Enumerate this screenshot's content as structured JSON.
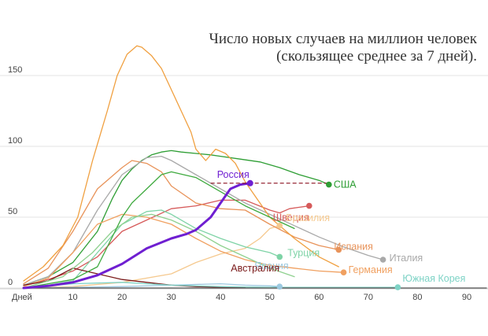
{
  "chart_data": {
    "type": "line",
    "title": [
      "Число новых случаев на миллион человек",
      "(скользящее среднее за 7 дней)."
    ],
    "xlabel": "Дней",
    "x_ticks": [
      10,
      20,
      30,
      40,
      50,
      60,
      70,
      80,
      90
    ],
    "y_ticks": [
      0,
      50,
      100,
      150
    ],
    "xlim": [
      0,
      94
    ],
    "ylim": [
      0,
      175
    ],
    "grid": "horizontal",
    "legend": "inline labels at line ends",
    "reference_line": {
      "x": [
        38,
        62
      ],
      "y": 74,
      "color": "#8b0f1f"
    },
    "series": [
      {
        "name": "Россия",
        "color": "#6f1fd1",
        "emphasis": true,
        "x": [
          0,
          5,
          10,
          15,
          20,
          25,
          30,
          33,
          35,
          38,
          40,
          42,
          44,
          46
        ],
        "y": [
          0,
          1.5,
          4,
          9,
          17,
          28,
          35,
          38,
          41,
          50,
          60,
          70,
          73,
          74
        ],
        "end_marker": true
      },
      {
        "name": "США",
        "color": "#2e9e34",
        "x": [
          0,
          5,
          10,
          15,
          18,
          20,
          22,
          24,
          26,
          28,
          30,
          32,
          35,
          38,
          40,
          44,
          48,
          52,
          56,
          60,
          62
        ],
        "y": [
          2,
          8,
          18,
          40,
          63,
          76,
          84,
          90,
          94,
          96,
          97,
          96,
          95,
          94,
          93,
          91,
          89,
          85,
          80,
          76,
          73
        ],
        "end_marker": true
      },
      {
        "name": "Швеция",
        "color": "#d65a5a",
        "x": [
          0,
          5,
          10,
          15,
          20,
          25,
          30,
          35,
          40,
          45,
          50,
          52,
          54,
          56,
          58
        ],
        "y": [
          2,
          6,
          12,
          22,
          40,
          48,
          56,
          58,
          62,
          62,
          55,
          53,
          56,
          57,
          58
        ],
        "end_marker": true
      },
      {
        "name": "Бразилия",
        "color": "#f5c98f",
        "x": [
          0,
          10,
          20,
          30,
          35,
          40,
          45,
          48,
          50,
          52
        ],
        "y": [
          0,
          1,
          4,
          10,
          18,
          24,
          28,
          35,
          42,
          44
        ],
        "end_marker": true
      },
      {
        "name": "Турция",
        "color": "#7ed3a6",
        "x": [
          0,
          5,
          10,
          15,
          20,
          25,
          28,
          30,
          35,
          40,
          45,
          50,
          52
        ],
        "y": [
          0,
          2,
          5,
          25,
          45,
          54,
          55,
          52,
          42,
          35,
          29,
          25,
          22
        ],
        "end_marker": true
      },
      {
        "name": "Испания",
        "color": "#e8935a",
        "x": [
          0,
          5,
          10,
          15,
          20,
          22,
          25,
          28,
          30,
          35,
          40,
          45,
          50,
          55,
          60,
          64
        ],
        "y": [
          3,
          14,
          40,
          70,
          85,
          90,
          88,
          82,
          72,
          60,
          56,
          55,
          45,
          36,
          30,
          27
        ],
        "end_marker": true
      },
      {
        "name": "Италия",
        "color": "#a9a9a9",
        "x": [
          0,
          5,
          10,
          15,
          20,
          25,
          28,
          30,
          35,
          40,
          45,
          50,
          55,
          60,
          65,
          70,
          73
        ],
        "y": [
          2,
          8,
          25,
          55,
          80,
          92,
          93,
          90,
          80,
          70,
          60,
          52,
          44,
          36,
          29,
          23,
          20
        ],
        "end_marker": true
      },
      {
        "name": "Германия",
        "color": "#f0a060",
        "x": [
          0,
          5,
          10,
          15,
          20,
          25,
          30,
          35,
          40,
          45,
          50,
          55,
          60,
          65
        ],
        "y": [
          1,
          7,
          25,
          45,
          52,
          50,
          45,
          35,
          26,
          20,
          16,
          14,
          12,
          11
        ],
        "end_marker": true
      },
      {
        "name": "Япония",
        "color": "#9cc9e0",
        "x": [
          0,
          10,
          20,
          30,
          40,
          45,
          50,
          52
        ],
        "y": [
          0,
          0.5,
          1,
          2,
          3,
          2,
          1.5,
          1
        ],
        "end_marker": true
      },
      {
        "name": "Австралия",
        "color": "#7a1a1a",
        "x": [
          0,
          5,
          10,
          15,
          20,
          25,
          30,
          35,
          40,
          45
        ],
        "y": [
          2,
          5,
          14,
          10,
          6,
          4,
          2,
          1,
          0.5,
          0.3
        ],
        "end_marker": false
      },
      {
        "name": "Южная Корея",
        "color": "#7ed3c6",
        "x": [
          0,
          10,
          20,
          30,
          40,
          50,
          60,
          70,
          76
        ],
        "y": [
          0,
          3,
          4,
          2,
          1,
          0.5,
          0.5,
          0.5,
          0.5
        ],
        "end_marker": true
      },
      {
        "name": "",
        "color": "#f0a040",
        "x": [
          0,
          4,
          8,
          11,
          14,
          17,
          19,
          21,
          23,
          24,
          26,
          28,
          30,
          32,
          34,
          35,
          37,
          39,
          41,
          43,
          45,
          47,
          50,
          55,
          60,
          64
        ],
        "y": [
          5,
          15,
          30,
          50,
          90,
          125,
          150,
          165,
          171,
          170,
          164,
          155,
          140,
          125,
          110,
          98,
          90,
          98,
          95,
          88,
          75,
          65,
          50,
          35,
          22,
          15
        ],
        "end_marker": false
      },
      {
        "name": "",
        "color": "#8fd18f",
        "x": [
          0,
          8,
          14,
          18,
          22,
          26,
          30,
          35,
          40,
          45,
          50,
          55
        ],
        "y": [
          0,
          8,
          25,
          40,
          50,
          52,
          48,
          40,
          30,
          22,
          14,
          8
        ],
        "end_marker": false
      },
      {
        "name": "",
        "color": "#3faa3f",
        "x": [
          0,
          10,
          15,
          20,
          22,
          25,
          28,
          30,
          35,
          40,
          45,
          50,
          55
        ],
        "y": [
          0,
          6,
          15,
          50,
          60,
          70,
          80,
          82,
          78,
          68,
          58,
          50,
          42
        ],
        "end_marker": false
      },
      {
        "name": "",
        "color": "#555555",
        "x": [
          0,
          10,
          20,
          30,
          40,
          50,
          60,
          70,
          80,
          90,
          94
        ],
        "y": [
          0,
          0,
          0,
          0,
          0,
          0,
          0,
          0,
          0,
          0,
          0
        ],
        "end_marker": false
      }
    ]
  }
}
